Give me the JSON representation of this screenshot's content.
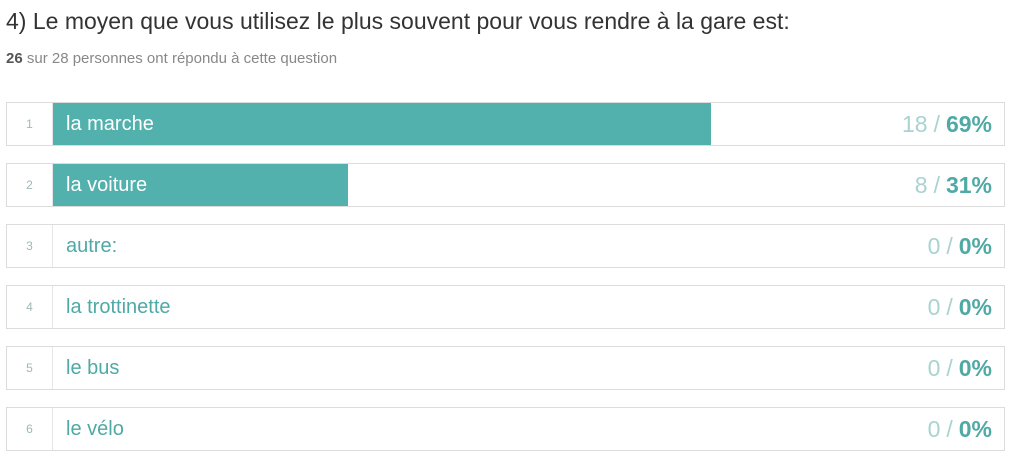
{
  "question": {
    "title": "4) Le moyen que vous utilisez le plus souvent pour vous rendre à la gare est:",
    "answered": "26",
    "summary_text": " sur 28 personnes ont répondu à cette question"
  },
  "colors": {
    "bar": "#52b1ad",
    "accent_text": "#4fa9a5",
    "muted_count": "#a8d3d1"
  },
  "chart_data": {
    "type": "bar",
    "orientation": "horizontal",
    "categories": [
      "la marche",
      "la voiture",
      "autre:",
      "la trottinette",
      "le bus",
      "le vélo"
    ],
    "ranks": [
      "1",
      "2",
      "3",
      "4",
      "5",
      "6"
    ],
    "counts": [
      18,
      8,
      0,
      0,
      0,
      0
    ],
    "percent_labels": [
      "69%",
      "31%",
      "0%",
      "0%",
      "0%",
      "0%"
    ],
    "values": [
      69,
      31,
      0,
      0,
      0,
      0
    ],
    "xlim": [
      0,
      100
    ]
  }
}
